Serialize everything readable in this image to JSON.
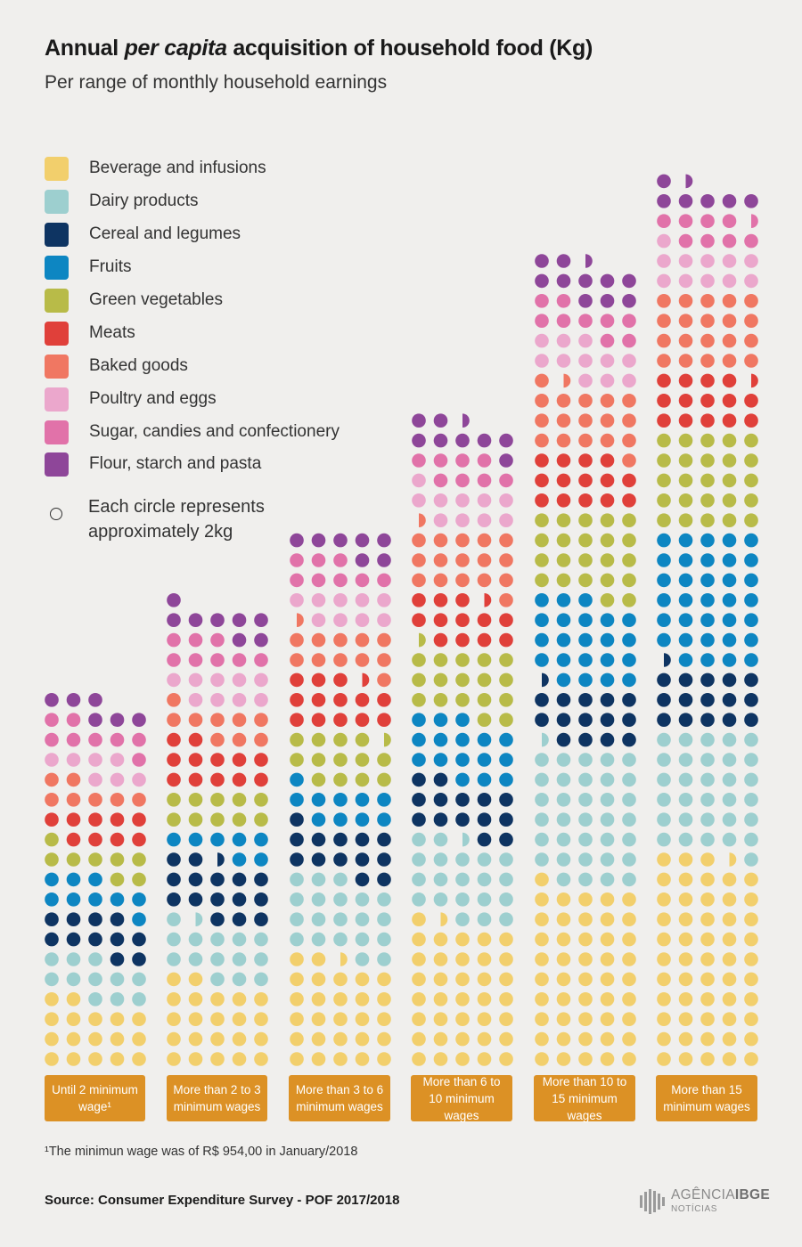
{
  "header": {
    "title_part1": "Annual ",
    "title_italic": "per capita",
    "title_part2": " acquisition of household food (Kg)",
    "subtitle": "Per range of monthly household earnings"
  },
  "legend": [
    {
      "label": "Beverage and infusions",
      "color": "#f2cf6c"
    },
    {
      "label": "Dairy products",
      "color": "#9dcfcf"
    },
    {
      "label": "Cereal and legumes",
      "color": "#0e3462"
    },
    {
      "label": "Fruits",
      "color": "#0d86c2"
    },
    {
      "label": "Green vegetables",
      "color": "#b8bb48"
    },
    {
      "label": "Meats",
      "color": "#e0403a"
    },
    {
      "label": "Baked goods",
      "color": "#f07762"
    },
    {
      "label": "Poultry and eggs",
      "color": "#eba7cc"
    },
    {
      "label": "Sugar, candies and confectionery",
      "color": "#e172a9"
    },
    {
      "label": "Flour, starch and pasta",
      "color": "#8e4699"
    }
  ],
  "unit_note": "Each circle represents approximately 2kg",
  "chart_data": {
    "type": "waffle",
    "title": "Annual per capita acquisition of household food (Kg)",
    "subtitle": "Per range of monthly household earnings",
    "unit": "circles (1 circle ≈ 2 kg)",
    "categories": [
      "Until 2 minimum wage¹",
      "More than 2 to 3 minimum wages",
      "More than 3 to 6 minimum wages",
      "More than 6 to 10 minimum wages",
      "More than 10 to 15 minimum wages",
      "More than 15 minimum wages"
    ],
    "series": [
      {
        "name": "Beverage and infusions",
        "values": [
          17,
          22,
          27.5,
          36.5,
          46,
          53.5
        ]
      },
      {
        "name": "Dairy products",
        "values": [
          11,
          14.5,
          20,
          20.5,
          34.5,
          31
        ]
      },
      {
        "name": "Cereal and legumes",
        "values": [
          11,
          15.5,
          13,
          14,
          14.5,
          15.5
        ]
      },
      {
        "name": "Fruits",
        "values": [
          9,
          7,
          10,
          16,
          22,
          34
        ]
      },
      {
        "name": "Green vegetables",
        "values": [
          8,
          10,
          13.5,
          17.5,
          22,
          25
        ]
      },
      {
        "name": "Meats",
        "values": [
          9,
          12,
          13.5,
          12.5,
          14,
          14.5
        ]
      },
      {
        "name": "Baked goods",
        "values": [
          7,
          9,
          11.5,
          16.5,
          17.5,
          20
        ]
      },
      {
        "name": "Poultry and eggs",
        "values": [
          7,
          9,
          9,
          10,
          11,
          11
        ]
      },
      {
        "name": "Sugar, candies and confectionery",
        "values": [
          8,
          8,
          8,
          8,
          9,
          8.5
        ]
      },
      {
        "name": "Flour, starch and pasta",
        "values": [
          6,
          8,
          7,
          8.5,
          10.5,
          6.5
        ]
      }
    ]
  },
  "group_labels": [
    "Until 2 minimum wage¹",
    "More than 2 to 3 minimum wages",
    "More than 3 to 6 minimum wages",
    "More than 6 to 10 minimum wages",
    "More than 10 to 15 minimum wages",
    "More than 15 minimum wages"
  ],
  "footnote": "¹The minimun wage was of R$ 954,00 in January/2018",
  "source": "Source: Consumer Expenditure Survey - POF 2017/2018",
  "logo": {
    "line1a": "AGÊNCIA",
    "line1b": "IBGE",
    "line2": "NOTÍCIAS"
  }
}
